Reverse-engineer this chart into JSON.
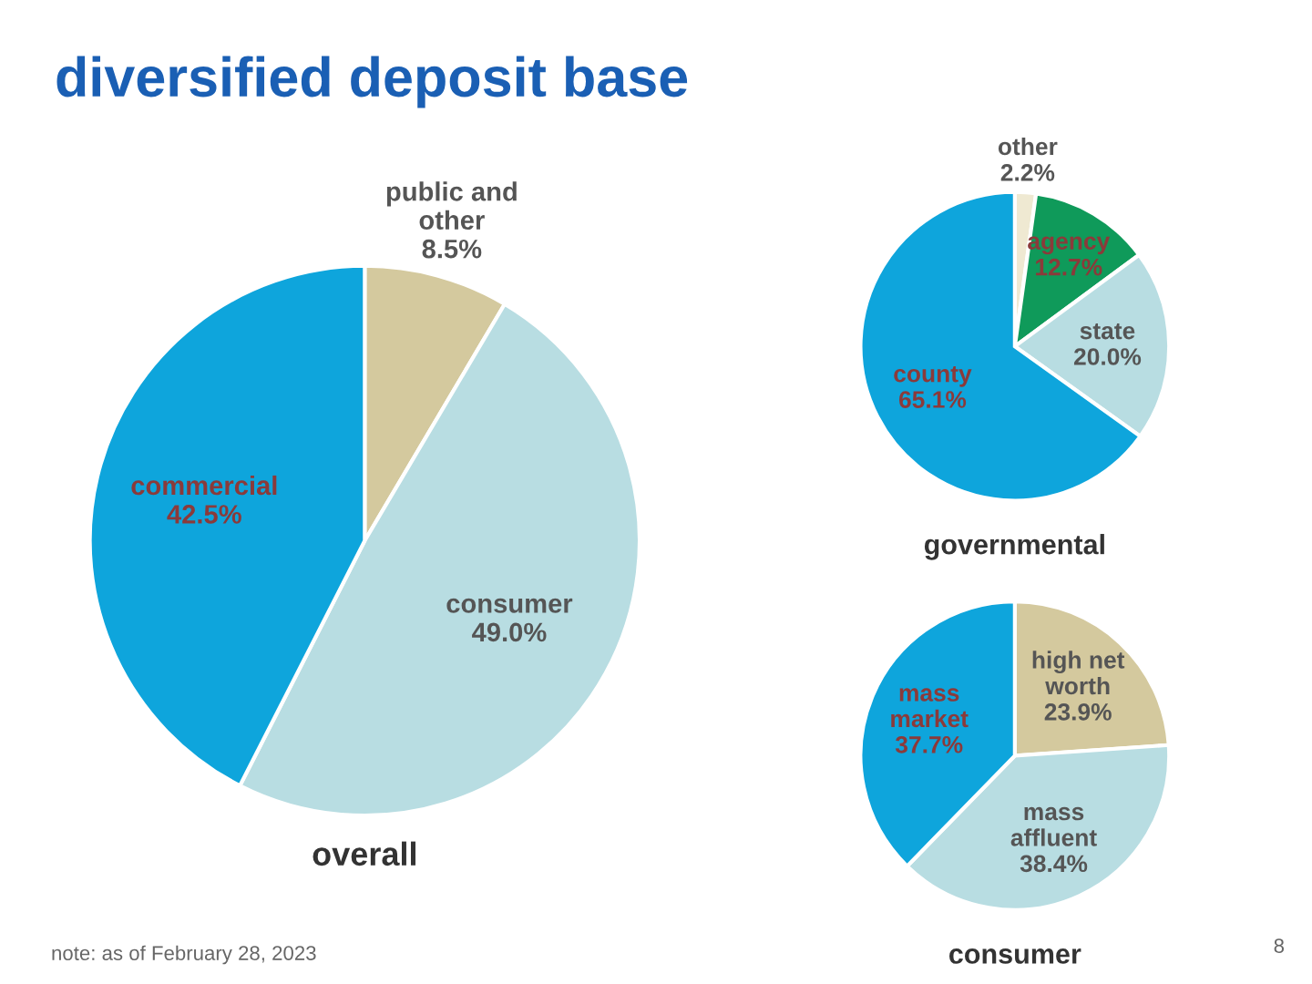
{
  "chart_data": [
    {
      "type": "pie",
      "title": "overall",
      "annotations": [
        "diversified deposit base",
        "note: as of February 28, 2023",
        "8"
      ],
      "categories": [
        "public and\nother",
        "consumer",
        "commercial"
      ],
      "values": [
        8.5,
        49.0,
        42.5
      ],
      "value_labels": [
        "8.5%",
        "49.0%",
        "42.5%"
      ],
      "colors": [
        "#d4c99e",
        "#b8dde2",
        "#0ea5dc"
      ]
    },
    {
      "type": "pie",
      "title": "governmental",
      "categories": [
        "other",
        "agency",
        "state",
        "county"
      ],
      "values": [
        2.2,
        12.7,
        20.0,
        65.1
      ],
      "value_labels": [
        "2.2%",
        "12.7%",
        "20.0%",
        "65.1%"
      ],
      "colors": [
        "#efe9d2",
        "#0f9a5a",
        "#b8dde2",
        "#0ea5dc"
      ]
    },
    {
      "type": "pie",
      "title": "consumer",
      "categories": [
        "high net\nworth",
        "mass\naffluent",
        "mass\nmarket"
      ],
      "values": [
        23.9,
        38.4,
        37.7
      ],
      "value_labels": [
        "23.9%",
        "38.4%",
        "37.7%"
      ],
      "colors": [
        "#d4c99e",
        "#b8dde2",
        "#0ea5dc"
      ]
    }
  ]
}
